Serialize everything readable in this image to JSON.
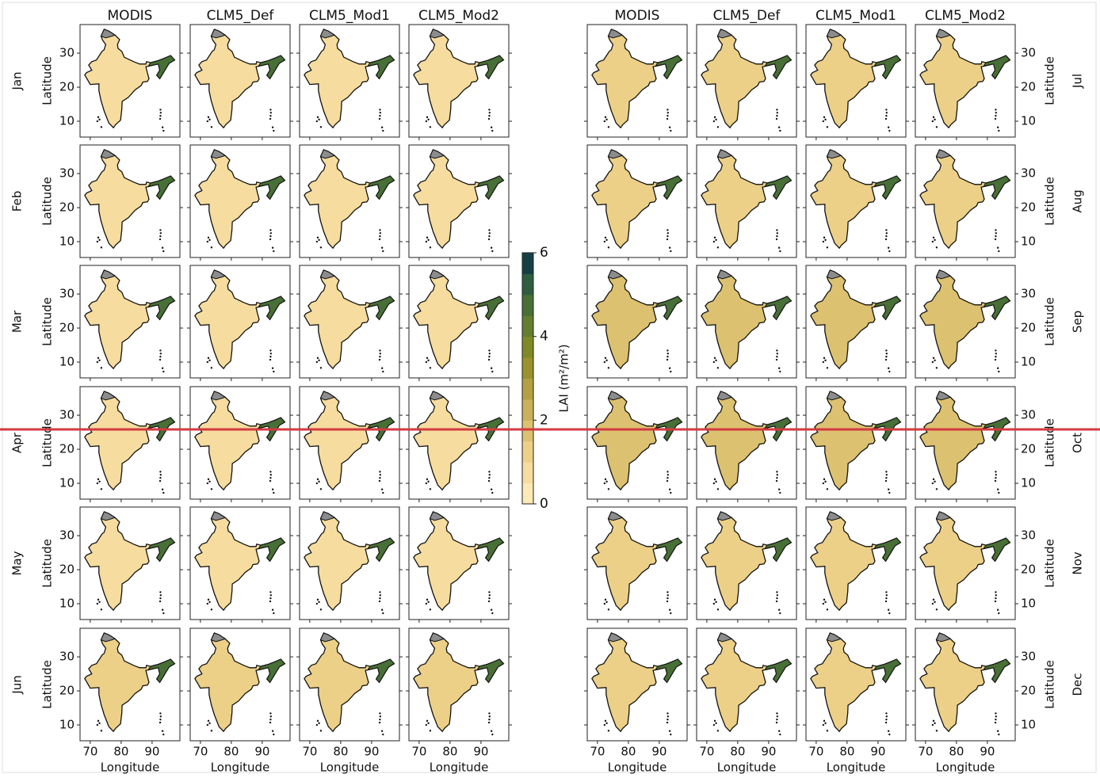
{
  "left_block": {
    "columns": [
      "MODIS",
      "CLM5_Def",
      "CLM5_Mod1",
      "CLM5_Mod2"
    ],
    "rows": [
      "Jan",
      "Feb",
      "Mar",
      "Apr",
      "May",
      "Jun"
    ]
  },
  "right_block": {
    "columns": [
      "MODIS",
      "CLM5_Def",
      "CLM5_Mod1",
      "CLM5_Mod2"
    ],
    "rows": [
      "Jul",
      "Aug",
      "Sep",
      "Oct",
      "Nov",
      "Dec"
    ]
  },
  "latitude_axis": {
    "label": "Latitude",
    "ticks": [
      10,
      20,
      30
    ],
    "range": [
      5.35,
      38.4
    ]
  },
  "longitude_axis": {
    "label": "Longitude",
    "ticks": [
      70,
      80,
      90
    ],
    "range": [
      66.7,
      99
    ]
  },
  "colorbar": {
    "label": "LAI (m²/m²)",
    "ticks": [
      0,
      2,
      4,
      6
    ],
    "range": [
      0,
      6
    ],
    "colors": [
      "#fde9b8",
      "#f6dc9e",
      "#ecd088",
      "#dcc170",
      "#c9b05a",
      "#b3a041",
      "#9a922c",
      "#7f8a26",
      "#627e2e",
      "#476f36",
      "#2e5e3d",
      "#153f45"
    ]
  }
}
